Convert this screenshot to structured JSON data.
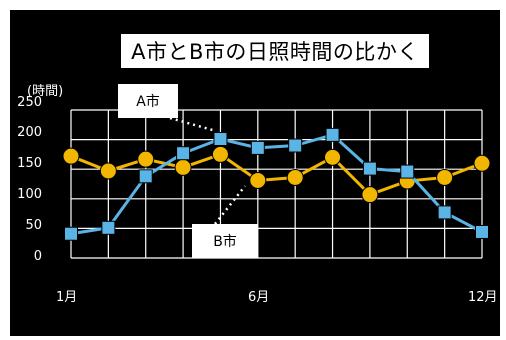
{
  "chart_data": {
    "type": "line",
    "title": "A市とB市の日照時間の比かく",
    "ylabel": "(時間)",
    "ylim": [
      0,
      250
    ],
    "yticks": [
      "0",
      "50",
      "100",
      "150",
      "200",
      "250"
    ],
    "x": [
      1,
      2,
      3,
      4,
      5,
      6,
      7,
      8,
      9,
      10,
      11,
      12
    ],
    "xtick_labels": [
      "1月",
      "6月",
      "12月"
    ],
    "grid": true,
    "series": [
      {
        "name": "A市",
        "color": "#f2b600",
        "marker": "circle",
        "values": [
          172,
          147,
          167,
          153,
          175,
          131,
          136,
          170,
          107,
          130,
          136,
          160
        ]
      },
      {
        "name": "B市",
        "color": "#5ab4e6",
        "marker": "square",
        "values": [
          41,
          51,
          138,
          177,
          201,
          186,
          190,
          208,
          151,
          146,
          77,
          44
        ]
      }
    ],
    "annotations": [
      "A市",
      "B市"
    ]
  },
  "colors": {
    "background": "#000000",
    "grid": "#ffffff"
  }
}
